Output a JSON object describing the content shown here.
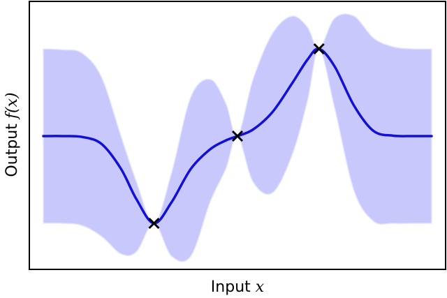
{
  "chart_data": {
    "type": "line",
    "title": "",
    "xlabel": "Input",
    "xlabel_var": "x",
    "ylabel": "Output",
    "ylabel_var": "f(x)",
    "xlim": [
      0,
      10
    ],
    "ylim": [
      -3.0,
      3.0
    ],
    "grid": false,
    "ticks": "none",
    "colors": {
      "mean": "#1010d8",
      "band": "#c8c8fc",
      "band_edge": "#e6e6ff",
      "observation": "#000000",
      "frame": "#000000"
    },
    "observations": {
      "x": [
        2.85,
        5.0,
        7.1
      ],
      "y": [
        -2.0,
        0.0,
        2.0
      ]
    },
    "series": [
      {
        "kind": "mean",
        "x": [
          0,
          0.5,
          1.0,
          1.5,
          2.0,
          2.4,
          2.85,
          3.3,
          3.8,
          4.3,
          4.7,
          5.0,
          5.4,
          5.9,
          6.4,
          6.8,
          7.1,
          7.5,
          8.0,
          8.5,
          9.0,
          9.5,
          10
        ],
        "y": [
          0,
          0,
          -0.02,
          -0.18,
          -0.75,
          -1.45,
          -2.0,
          -1.52,
          -0.75,
          -0.3,
          -0.1,
          0,
          0.15,
          0.55,
          1.2,
          1.75,
          2.0,
          1.6,
          0.7,
          0.12,
          0.01,
          0,
          0
        ]
      },
      {
        "kind": "confidence_upper",
        "x": [
          0,
          0.5,
          1.0,
          1.5,
          2.0,
          2.4,
          2.85,
          3.3,
          3.8,
          4.3,
          4.7,
          5.0,
          5.4,
          5.9,
          6.4,
          6.8,
          7.1,
          7.5,
          8.0,
          8.5,
          9.0,
          9.5,
          10
        ],
        "y": [
          2.0,
          1.98,
          1.9,
          1.35,
          0.0,
          -1.05,
          -2.0,
          -0.85,
          0.9,
          1.3,
          0.75,
          0,
          1.3,
          2.35,
          2.75,
          2.5,
          2.0,
          2.7,
          2.75,
          2.25,
          2.05,
          2.0,
          2.0
        ]
      },
      {
        "kind": "confidence_lower",
        "x": [
          0,
          0.5,
          1.0,
          1.5,
          2.0,
          2.4,
          2.85,
          3.3,
          3.8,
          4.3,
          4.7,
          5.0,
          5.4,
          5.9,
          6.4,
          6.8,
          7.1,
          7.5,
          8.0,
          8.5,
          9.0,
          9.5,
          10
        ],
        "y": [
          -2.0,
          -2.0,
          -2.05,
          -2.3,
          -2.7,
          -2.65,
          -2.0,
          -2.75,
          -2.75,
          -1.5,
          -0.75,
          0,
          -1.05,
          -1.3,
          -0.45,
          0.8,
          2.0,
          0.65,
          -1.25,
          -1.95,
          -2.0,
          -2.0,
          -2.0
        ]
      }
    ]
  }
}
